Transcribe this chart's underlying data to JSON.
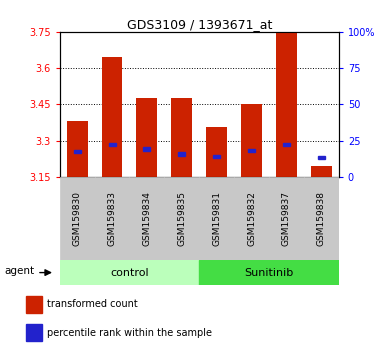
{
  "title": "GDS3109 / 1393671_at",
  "samples": [
    "GSM159830",
    "GSM159833",
    "GSM159834",
    "GSM159835",
    "GSM159831",
    "GSM159832",
    "GSM159837",
    "GSM159838"
  ],
  "red_values": [
    3.38,
    3.645,
    3.475,
    3.475,
    3.355,
    3.45,
    3.75,
    3.195
  ],
  "blue_values": [
    3.255,
    3.285,
    3.265,
    3.245,
    3.235,
    3.26,
    3.285,
    3.23
  ],
  "y_min": 3.15,
  "y_max": 3.75,
  "y_ticks_left": [
    3.15,
    3.3,
    3.45,
    3.6,
    3.75
  ],
  "y_ticks_right_pct": [
    0,
    25,
    50,
    75,
    100
  ],
  "y_right_labels": [
    "0",
    "25",
    "50",
    "75",
    "100%"
  ],
  "grid_lines": [
    3.3,
    3.45,
    3.6
  ],
  "bar_color": "#CC2200",
  "blue_color": "#2222CC",
  "tick_bg_color": "#C8C8C8",
  "group_control_color": "#BBFFBB",
  "group_sunitinib_color": "#44DD44",
  "group_labels": [
    "control",
    "Sunitinib"
  ],
  "legend_red_label": "transformed count",
  "legend_blue_label": "percentile rank within the sample"
}
